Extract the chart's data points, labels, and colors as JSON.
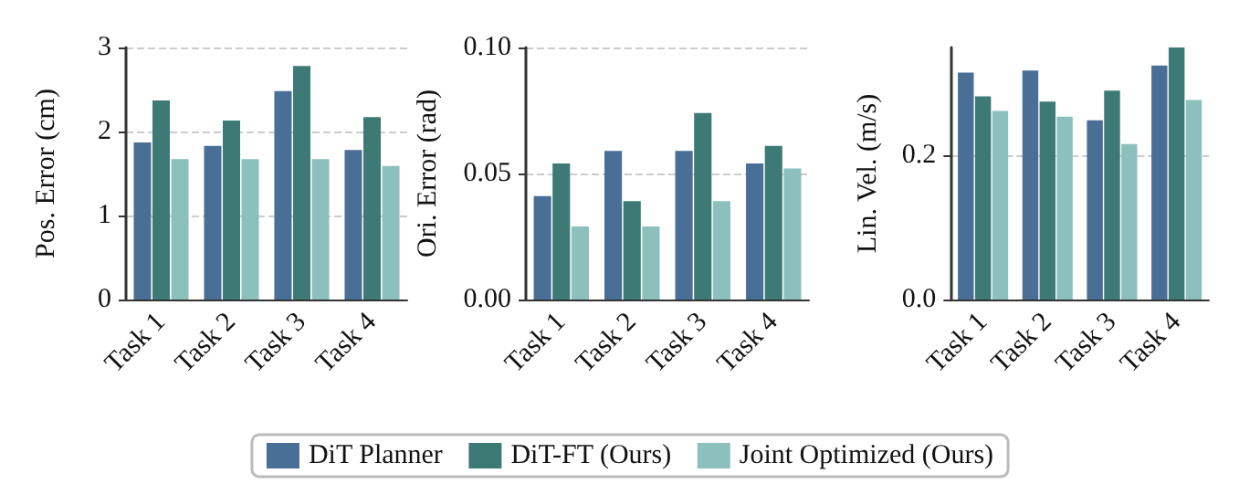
{
  "chart_data": [
    {
      "type": "bar",
      "ylabel": "Pos. Error (cm)",
      "categories": [
        "Task 1",
        "Task 2",
        "Task 3",
        "Task 4"
      ],
      "ylim": [
        0,
        3
      ],
      "yticks": [
        0,
        1,
        2,
        3
      ],
      "grid": "y",
      "series": [
        {
          "color": "#4a6f96",
          "values": [
            1.87,
            1.83,
            2.48,
            1.78
          ]
        },
        {
          "color": "#3d7a76",
          "values": [
            2.37,
            2.13,
            2.78,
            2.17
          ]
        },
        {
          "color": "#8cc0bd",
          "values": [
            1.67,
            1.67,
            1.67,
            1.59
          ]
        }
      ]
    },
    {
      "type": "bar",
      "ylabel": "Ori. Error (rad)",
      "categories": [
        "Task 1",
        "Task 2",
        "Task 3",
        "Task 4"
      ],
      "ylim": [
        0,
        0.1
      ],
      "yticks": [
        {
          "value": 0,
          "label": "0.00"
        },
        {
          "value": 0.05,
          "label": "0.05"
        },
        {
          "value": 0.1,
          "label": "0.10"
        }
      ],
      "grid": "y",
      "legend": "bottom",
      "series": [
        {
          "name": "DiT Planner",
          "color": "#4a6f96",
          "values": [
            0.041,
            0.059,
            0.059,
            0.054
          ]
        },
        {
          "name": "DiT-FT (Ours)",
          "color": "#3d7a76",
          "values": [
            0.054,
            0.039,
            0.074,
            0.061
          ]
        },
        {
          "name": "Joint Optimized (Ours)",
          "color": "#8cc0bd",
          "values": [
            0.029,
            0.029,
            0.039,
            0.052
          ]
        }
      ]
    },
    {
      "type": "bar",
      "ylabel": "Lin. Vel. (m/s)",
      "categories": [
        "Task 1",
        "Task 2",
        "Task 3",
        "Task 4"
      ],
      "ylim": [
        0,
        0.35
      ],
      "yticks": [
        {
          "value": 0,
          "label": "0.0"
        },
        {
          "value": 0.2,
          "label": "0.2"
        }
      ],
      "grid": "y",
      "series": [
        {
          "color": "#4a6f96",
          "values": [
            0.315,
            0.318,
            0.249,
            0.325
          ]
        },
        {
          "color": "#3d7a76",
          "values": [
            0.282,
            0.275,
            0.29,
            0.35
          ]
        },
        {
          "color": "#8cc0bd",
          "values": [
            0.262,
            0.254,
            0.216,
            0.277
          ]
        }
      ]
    }
  ]
}
